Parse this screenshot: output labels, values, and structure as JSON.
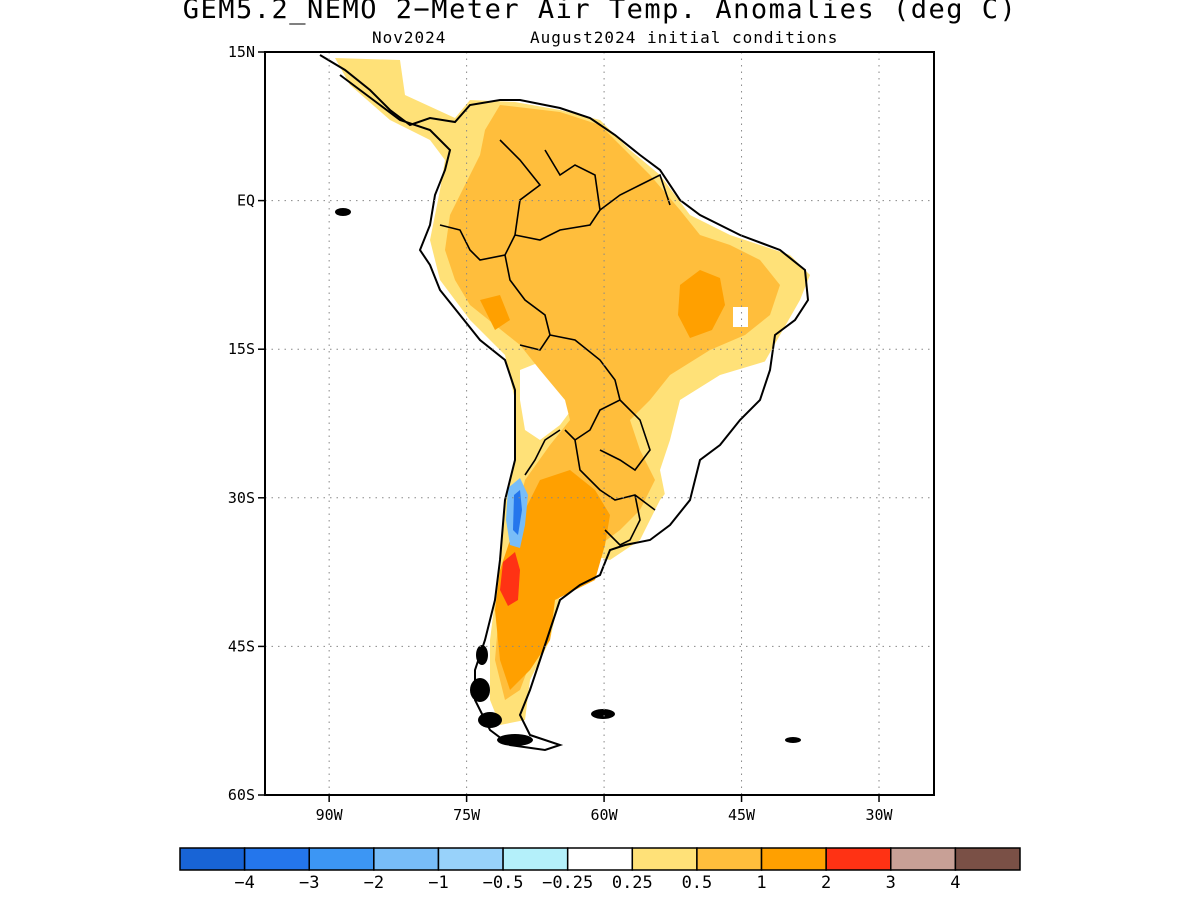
{
  "title": "GEM5.2_NEMO 2−Meter Air Temp. Anomalies (deg C)",
  "subtitle_left": "Nov2024",
  "subtitle_right": "August2024 initial conditions",
  "map": {
    "lon_range": [
      -97,
      -24
    ],
    "lat_range": [
      -60,
      15
    ],
    "lat_ticks": [
      {
        "value": 15,
        "label": "15N"
      },
      {
        "value": 0,
        "label": "EQ"
      },
      {
        "value": -15,
        "label": "15S"
      },
      {
        "value": -30,
        "label": "30S"
      },
      {
        "value": -45,
        "label": "45S"
      },
      {
        "value": -60,
        "label": "60S"
      }
    ],
    "lon_ticks": [
      {
        "value": -90,
        "label": "90W"
      },
      {
        "value": -75,
        "label": "75W"
      },
      {
        "value": -60,
        "label": "60W"
      },
      {
        "value": -45,
        "label": "45W"
      },
      {
        "value": -30,
        "label": "30W"
      }
    ],
    "gridlines": "dotted"
  },
  "colorbar": {
    "colors": [
      "#1864d6",
      "#2476ec",
      "#3c96f4",
      "#78bdf8",
      "#98d2fa",
      "#b4f0fa",
      "#ffffff",
      "#ffe178",
      "#ffbe3c",
      "#ffa000",
      "#ff3214",
      "#c8a096",
      "#7a5046"
    ],
    "labels": [
      "−4",
      "−3",
      "−2",
      "−1",
      "−0.5",
      "−0.25",
      "0.25",
      "0.5",
      "1",
      "2",
      "3",
      "4"
    ]
  }
}
